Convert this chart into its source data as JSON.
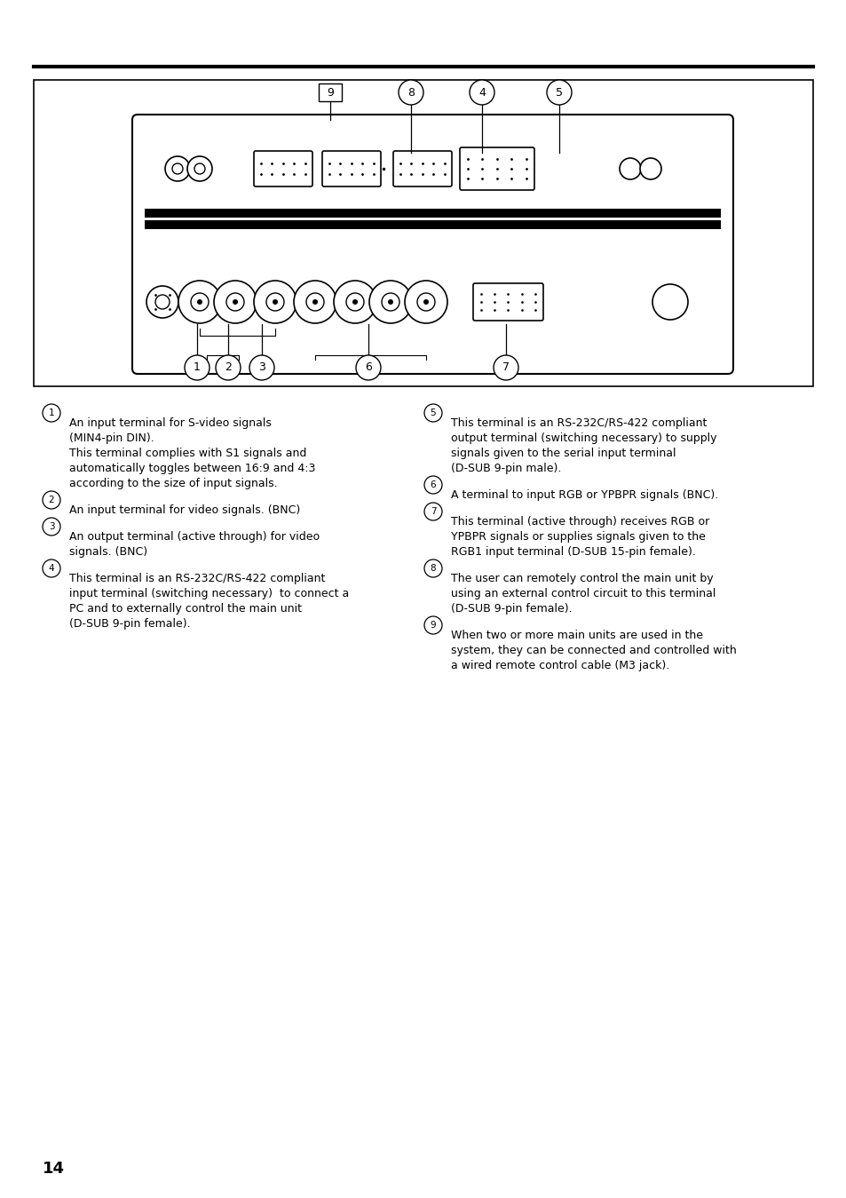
{
  "page_number": "14",
  "background_color": "#ffffff",
  "items_left": [
    {
      "num": "1",
      "lines": [
        "An input terminal for S-video signals",
        "(MIN4-pin DIN).",
        "This terminal complies with S1 signals and",
        "automatically toggles between 16:9 and 4:3",
        "according to the size of input signals."
      ]
    },
    {
      "num": "2",
      "lines": [
        "An input terminal for video signals. (BNC)"
      ]
    },
    {
      "num": "3",
      "lines": [
        "An output terminal (active through) for video",
        "signals. (BNC)"
      ]
    },
    {
      "num": "4",
      "lines": [
        "This terminal is an RS-232C/RS-422 compliant",
        "input terminal (switching necessary)  to connect a",
        "PC and to externally control the main unit",
        "(D-SUB 9-pin female)."
      ]
    }
  ],
  "items_right": [
    {
      "num": "5",
      "lines": [
        "This terminal is an RS-232C/RS-422 compliant",
        "output terminal (switching necessary) to supply",
        "signals given to the serial input terminal",
        "(D-SUB 9-pin male)."
      ]
    },
    {
      "num": "6",
      "lines": [
        "A terminal to input RGB or YPBPR signals (BNC)."
      ]
    },
    {
      "num": "7",
      "lines": [
        "This terminal (active through) receives RGB or",
        "YPBPR signals or supplies signals given to the",
        "RGB1 input terminal (D-SUB 15-pin female)."
      ]
    },
    {
      "num": "8",
      "lines": [
        "The user can remotely control the main unit by",
        "using an external control circuit to this terminal",
        "(D-SUB 9-pin female)."
      ]
    },
    {
      "num": "9",
      "lines": [
        "When two or more main units are used in the",
        "system, they can be connected and controlled with",
        "a wired remote control cable (M3 jack)."
      ]
    }
  ]
}
